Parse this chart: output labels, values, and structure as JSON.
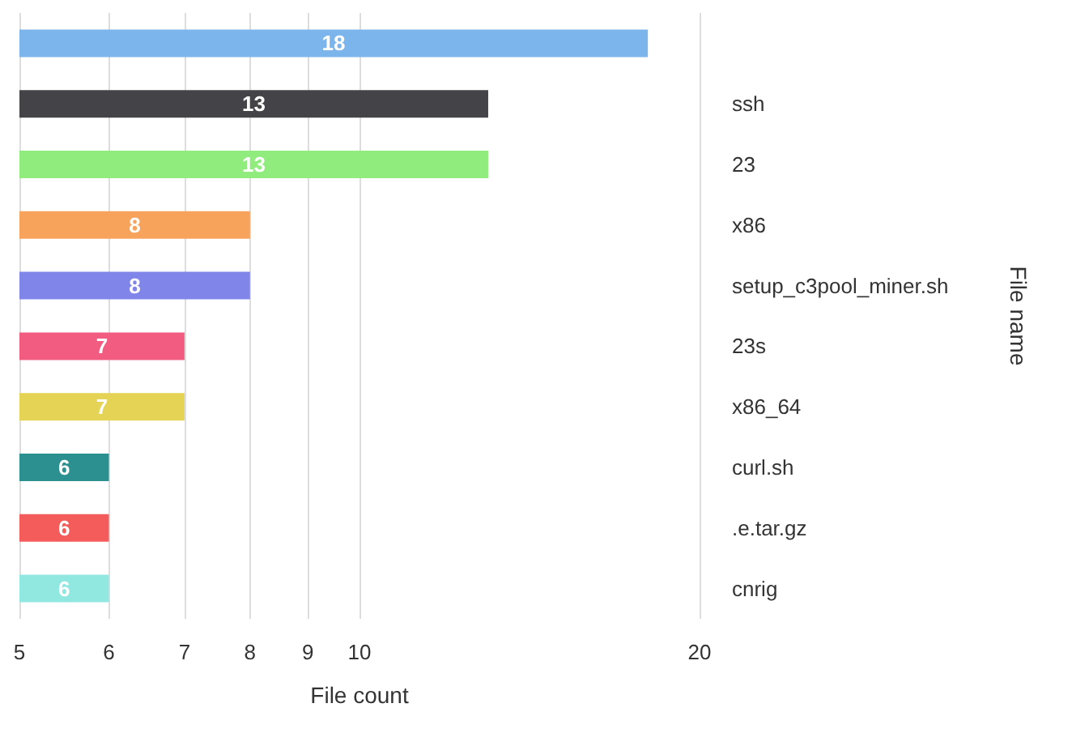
{
  "chart_data": {
    "type": "bar",
    "orientation": "horizontal",
    "xlabel": "File count",
    "ylabel": "File name",
    "categories": [
      null,
      "ssh",
      "23",
      "x86",
      "setup_c3pool_miner.sh",
      "23s",
      "x86_64",
      "curl.sh",
      ".e.tar.gz",
      "cnrig"
    ],
    "values": [
      18,
      13,
      13,
      8,
      8,
      7,
      7,
      6,
      6,
      6
    ],
    "colors": [
      "#7cb5ec",
      "#434348",
      "#90ed7d",
      "#f7a35c",
      "#8085e9",
      "#f15c80",
      "#e4d354",
      "#2b908f",
      "#f45b5b",
      "#91e8e1"
    ],
    "log": "x",
    "xlim": [
      5,
      20
    ],
    "xticks": [
      5,
      6,
      7,
      8,
      9,
      10,
      20
    ],
    "grid": "x",
    "data_labels": true
  }
}
